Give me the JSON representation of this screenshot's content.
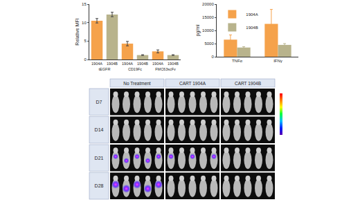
{
  "chart_data": [
    {
      "type": "bar",
      "y_label": "Relative MFI",
      "groups": [
        "tEGFR",
        "tEGFR",
        "CD19Fc",
        "CD19Fc",
        "FMC63scFv",
        "FMC63scFv"
      ],
      "categories": [
        "1904A",
        "1904B",
        "1904A",
        "1904B",
        "1904A",
        "1904B"
      ],
      "values": [
        10.5,
        12.2,
        4.3,
        1.2,
        2.2,
        1.2
      ],
      "errors": [
        0.6,
        0.6,
        0.6,
        0.1,
        0.4,
        0.1
      ],
      "colors": [
        "#f5a24b",
        "#b8b38c",
        "#f5a24b",
        "#b8b38c",
        "#f5a24b",
        "#b8b38c"
      ],
      "ylim": [
        0,
        15
      ],
      "yticks": [
        0,
        5,
        10,
        15
      ],
      "grid": false
    },
    {
      "type": "bar",
      "y_label": "pg/ml",
      "categories": [
        "TNFα",
        "IFNγ"
      ],
      "series": [
        {
          "name": "1904A",
          "color": "#f5a24b",
          "values": [
            6500,
            12500
          ],
          "errors": [
            1800,
            5500
          ]
        },
        {
          "name": "1904B",
          "color": "#b8b38c",
          "values": [
            3500,
            4500
          ],
          "errors": [
            300,
            500
          ]
        }
      ],
      "ylim": [
        0,
        20000
      ],
      "yticks": [
        0,
        5000,
        10000,
        15000,
        20000
      ],
      "legend": "upper left",
      "grid": false
    }
  ],
  "image_grid": {
    "columns": [
      "No Treatment",
      "CART 1904A",
      "CART 1904B"
    ],
    "rows": [
      "D7",
      "D14",
      "D21",
      "D28"
    ]
  }
}
